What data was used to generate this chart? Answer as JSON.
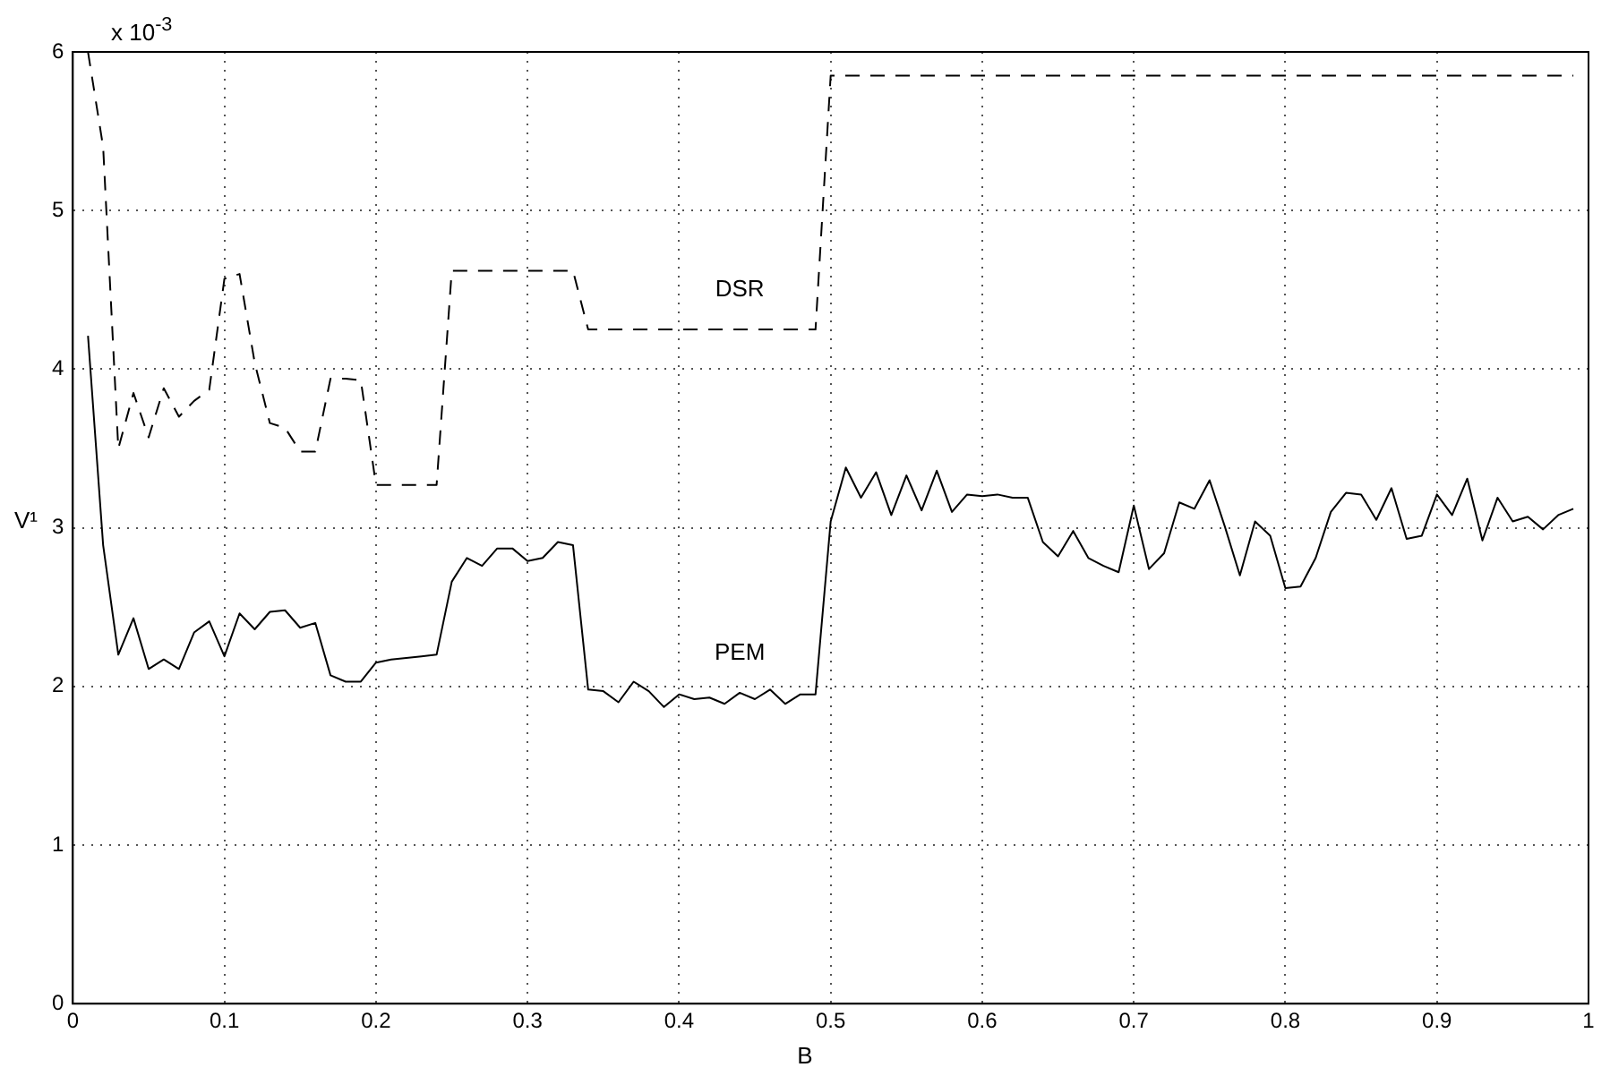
{
  "chart_data": {
    "type": "line",
    "xlabel": "B",
    "ylabel": "V¹",
    "x": [
      0.01,
      0.02,
      0.03,
      0.04,
      0.05,
      0.06,
      0.07,
      0.08,
      0.09,
      0.1,
      0.11,
      0.12,
      0.13,
      0.14,
      0.15,
      0.16,
      0.17,
      0.18,
      0.19,
      0.2,
      0.21,
      0.22,
      0.23,
      0.24,
      0.25,
      0.26,
      0.27,
      0.28,
      0.29,
      0.3,
      0.31,
      0.32,
      0.33,
      0.34,
      0.35,
      0.36,
      0.37,
      0.38,
      0.39,
      0.4,
      0.41,
      0.42,
      0.43,
      0.44,
      0.45,
      0.46,
      0.47,
      0.48,
      0.49,
      0.5,
      0.51,
      0.52,
      0.53,
      0.54,
      0.55,
      0.56,
      0.57,
      0.58,
      0.59,
      0.6,
      0.61,
      0.62,
      0.63,
      0.64,
      0.65,
      0.66,
      0.67,
      0.68,
      0.69,
      0.7,
      0.71,
      0.72,
      0.73,
      0.74,
      0.75,
      0.76,
      0.77,
      0.78,
      0.79,
      0.8,
      0.81,
      0.82,
      0.83,
      0.84,
      0.85,
      0.86,
      0.87,
      0.88,
      0.89,
      0.9,
      0.91,
      0.92,
      0.93,
      0.94,
      0.95,
      0.96,
      0.97,
      0.98,
      0.99
    ],
    "series": [
      {
        "name": "PEM",
        "color": "#000000",
        "line_style": "solid",
        "values": [
          4.21,
          2.89,
          2.2,
          2.43,
          2.11,
          2.17,
          2.11,
          2.34,
          2.41,
          2.19,
          2.46,
          2.36,
          2.47,
          2.48,
          2.37,
          2.4,
          2.07,
          2.03,
          2.03,
          2.15,
          2.17,
          2.18,
          2.19,
          2.2,
          2.66,
          2.81,
          2.76,
          2.87,
          2.87,
          2.79,
          2.81,
          2.91,
          2.89,
          1.98,
          1.97,
          1.9,
          2.03,
          1.97,
          1.87,
          1.95,
          1.92,
          1.93,
          1.89,
          1.96,
          1.92,
          1.98,
          1.89,
          1.95,
          1.95,
          3.04,
          3.38,
          3.19,
          3.35,
          3.08,
          3.33,
          3.11,
          3.36,
          3.1,
          3.21,
          3.2,
          3.21,
          3.19,
          3.19,
          2.91,
          2.82,
          2.98,
          2.81,
          2.76,
          2.72,
          3.14,
          2.74,
          2.84,
          3.16,
          3.12,
          3.3,
          3.01,
          2.7,
          3.04,
          2.95,
          2.62,
          2.63,
          2.81,
          3.1,
          3.22,
          3.21,
          3.05,
          3.25,
          2.93,
          2.95,
          3.21,
          3.08,
          3.31,
          2.92,
          3.19,
          3.04,
          3.07,
          2.99,
          3.08,
          3.12
        ]
      },
      {
        "name": "DSR",
        "color": "#000000",
        "line_style": "dashed",
        "values": [
          6.0,
          5.4,
          3.5,
          3.85,
          3.57,
          3.88,
          3.7,
          3.8,
          3.87,
          4.57,
          4.6,
          4.04,
          3.66,
          3.63,
          3.48,
          3.48,
          3.94,
          3.94,
          3.93,
          3.27,
          3.27,
          3.27,
          3.27,
          3.27,
          4.62,
          4.62,
          4.62,
          4.62,
          4.62,
          4.62,
          4.62,
          4.62,
          4.62,
          4.25,
          4.25,
          4.25,
          4.25,
          4.25,
          4.25,
          4.25,
          4.25,
          4.25,
          4.25,
          4.25,
          4.25,
          4.25,
          4.25,
          4.25,
          4.25,
          5.85,
          5.85,
          5.85,
          5.85,
          5.85,
          5.85,
          5.85,
          5.85,
          5.85,
          5.85,
          5.85,
          5.85,
          5.85,
          5.85,
          5.85,
          5.85,
          5.85,
          5.85,
          5.85,
          5.85,
          5.85,
          5.85,
          5.85,
          5.85,
          5.85,
          5.85,
          5.85,
          5.85,
          5.85,
          5.85,
          5.85,
          5.85,
          5.85,
          5.85,
          5.85,
          5.85,
          5.85,
          5.85,
          5.85,
          5.85,
          5.85,
          5.85,
          5.85,
          5.85,
          5.85,
          5.85,
          5.85,
          5.85,
          5.85,
          5.85
        ]
      }
    ],
    "xlim": [
      0,
      1
    ],
    "xticks": [
      0,
      0.1,
      0.2,
      0.3,
      0.4,
      0.5,
      0.6,
      0.7,
      0.8,
      0.9,
      1
    ],
    "ylim": [
      0,
      6
    ],
    "yticks": [
      0,
      1,
      2,
      3,
      4,
      5,
      6
    ],
    "grid": true,
    "marker": "none",
    "annotations": [
      "x 10$^{-3}$"
    ]
  }
}
